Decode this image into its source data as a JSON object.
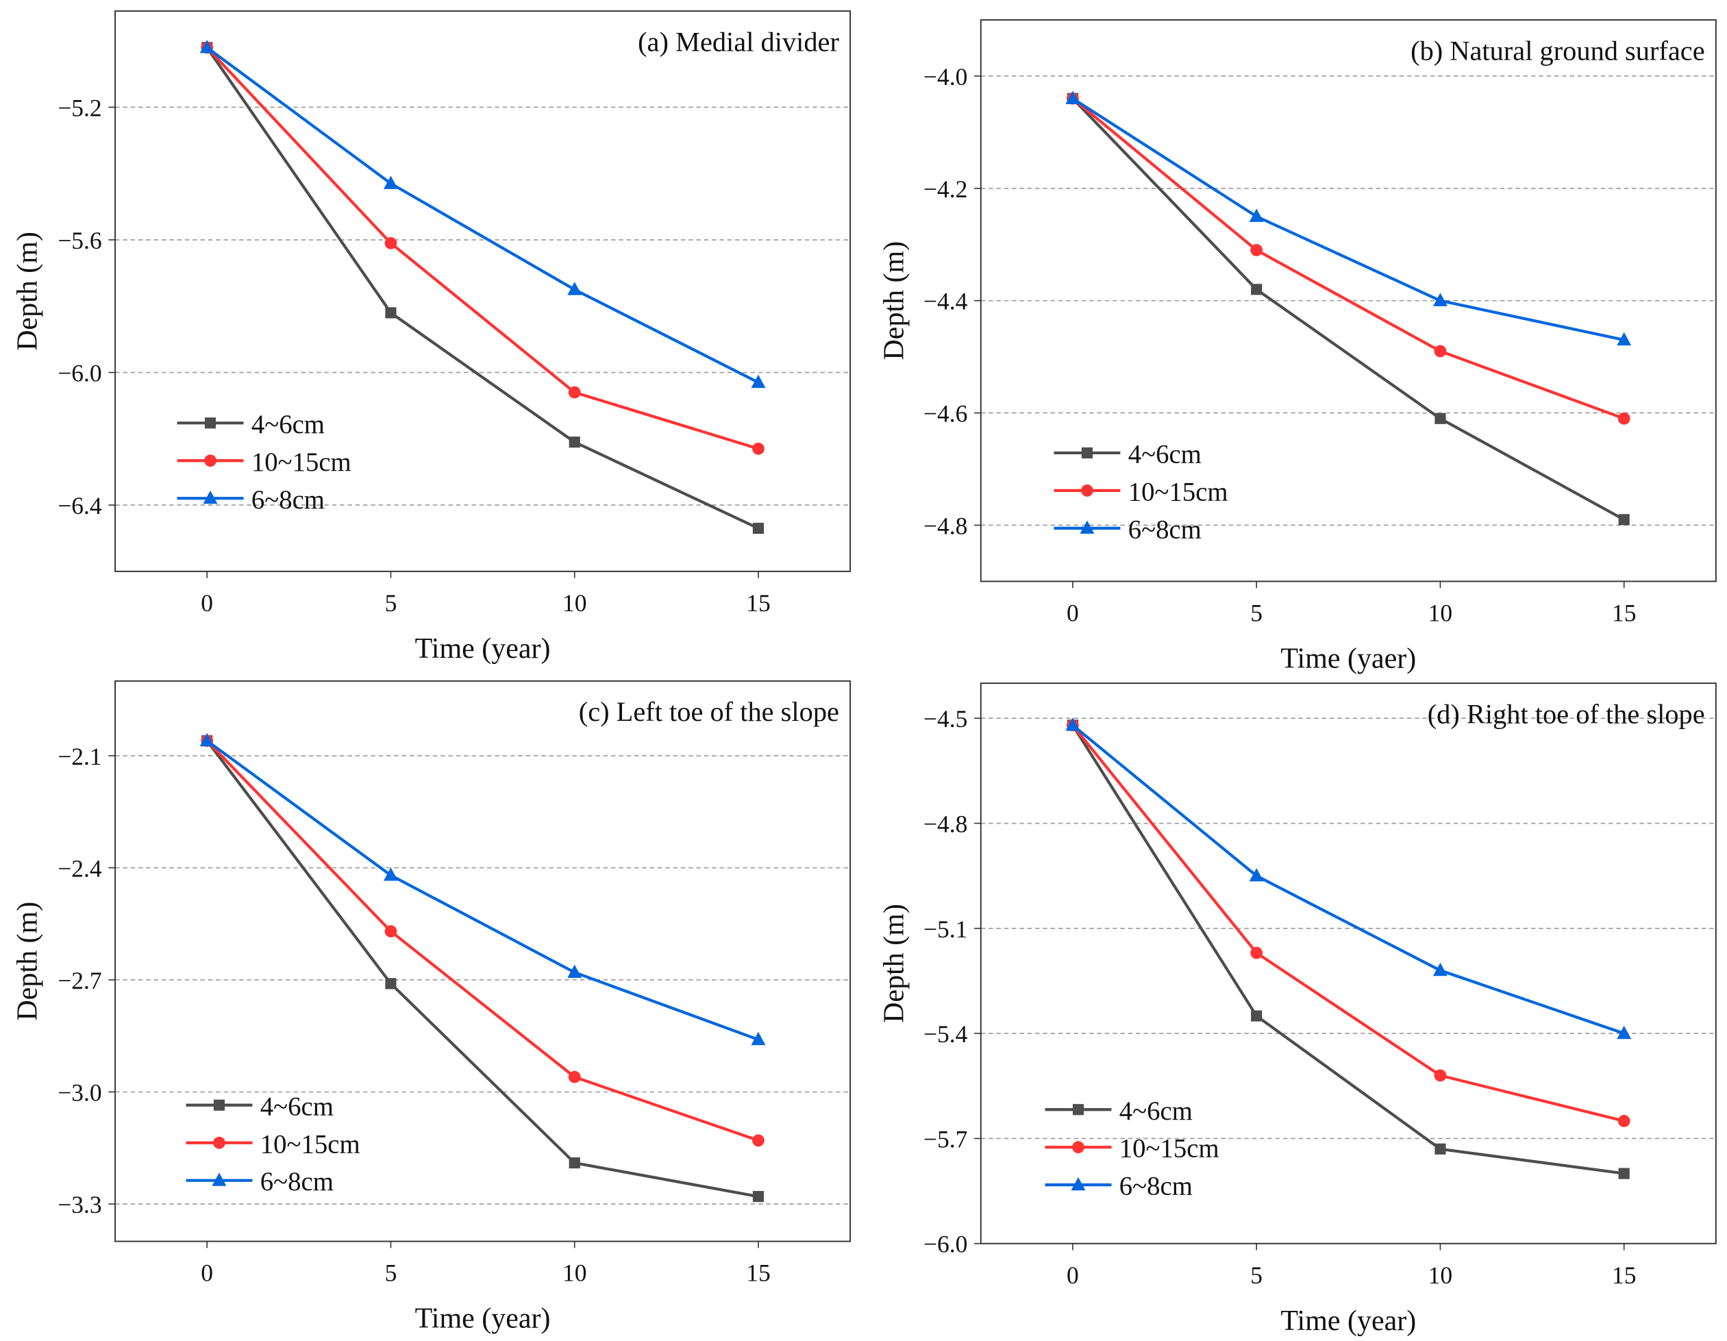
{
  "colors": {
    "4~6cm": "#4d4d4d",
    "10~15cm": "#ff3333",
    "6~8cm": "#0066dd",
    "grid": "#999999"
  },
  "chart_data": [
    {
      "type": "line",
      "title": "(a) Medial divider",
      "xlabel": "Time (year)",
      "ylabel": "Depth (m)",
      "x": [
        0,
        5,
        10,
        15
      ],
      "xticks": [
        0,
        5,
        10,
        15
      ],
      "yticks": [
        -5.2,
        -5.6,
        -6.0,
        -6.4
      ],
      "ytick_labels": [
        "−5.2",
        "−5.6",
        "−6.0",
        "−6.4"
      ],
      "xlim": [
        -2.5,
        17.5
      ],
      "ylim": [
        -6.6,
        -4.91
      ],
      "grid": "horizontal dashed",
      "legend_placement": "lower-left",
      "series": [
        {
          "name": "4~6cm",
          "marker": "square",
          "values": [
            -5.02,
            -5.82,
            -6.21,
            -6.47
          ]
        },
        {
          "name": "10~15cm",
          "marker": "circle",
          "values": [
            -5.02,
            -5.61,
            -6.06,
            -6.23
          ]
        },
        {
          "name": "6~8cm",
          "marker": "triangle",
          "values": [
            -5.02,
            -5.43,
            -5.75,
            -6.03
          ]
        }
      ]
    },
    {
      "type": "line",
      "title": "(b) Natural ground surface",
      "xlabel": "Time (yaer)",
      "ylabel": "Depth (m)",
      "x": [
        0,
        5,
        10,
        15
      ],
      "xticks": [
        0,
        5,
        10,
        15
      ],
      "yticks": [
        -4.0,
        -4.2,
        -4.4,
        -4.6,
        -4.8
      ],
      "ytick_labels": [
        "−4.0",
        "−4.2",
        "−4.4",
        "−4.6",
        "−4.8"
      ],
      "xlim": [
        -2.5,
        17.5
      ],
      "ylim": [
        -4.9,
        -3.9
      ],
      "grid": "horizontal dashed",
      "legend_placement": "lower-left",
      "series": [
        {
          "name": "4~6cm",
          "marker": "square",
          "values": [
            -4.04,
            -4.38,
            -4.61,
            -4.79
          ]
        },
        {
          "name": "10~15cm",
          "marker": "circle",
          "values": [
            -4.04,
            -4.31,
            -4.49,
            -4.61
          ]
        },
        {
          "name": "6~8cm",
          "marker": "triangle",
          "values": [
            -4.04,
            -4.25,
            -4.4,
            -4.47
          ]
        }
      ]
    },
    {
      "type": "line",
      "title": "(c) Left toe of the slope",
      "xlabel": "Time (year)",
      "ylabel": "Depth (m)",
      "x": [
        0,
        5,
        10,
        15
      ],
      "xticks": [
        0,
        5,
        10,
        15
      ],
      "yticks": [
        -2.1,
        -2.4,
        -2.7,
        -3.0,
        -3.3
      ],
      "ytick_labels": [
        "−2.1",
        "−2.4",
        "−2.7",
        "−3.0",
        "−3.3"
      ],
      "xlim": [
        -2.5,
        17.5
      ],
      "ylim": [
        -3.4,
        -1.9
      ],
      "grid": "horizontal dashed",
      "legend_placement": "lower-left",
      "series": [
        {
          "name": "4~6cm",
          "marker": "square",
          "values": [
            -2.06,
            -2.71,
            -3.19,
            -3.28
          ]
        },
        {
          "name": "10~15cm",
          "marker": "circle",
          "values": [
            -2.06,
            -2.57,
            -2.96,
            -3.13
          ]
        },
        {
          "name": "6~8cm",
          "marker": "triangle",
          "values": [
            -2.06,
            -2.42,
            -2.68,
            -2.86
          ]
        }
      ]
    },
    {
      "type": "line",
      "title": "(d) Right toe of the slope",
      "xlabel": "Time (year)",
      "ylabel": "Depth (m)",
      "x": [
        0,
        5,
        10,
        15
      ],
      "xticks": [
        0,
        5,
        10,
        15
      ],
      "yticks": [
        -4.5,
        -4.8,
        -5.1,
        -5.4,
        -5.7,
        -6.0
      ],
      "ytick_labels": [
        "−4.5",
        "−4.8",
        "−5.1",
        "−5.4",
        "−5.7",
        "−6.0"
      ],
      "xlim": [
        -2.5,
        17.5
      ],
      "ylim": [
        -6.0,
        -4.4
      ],
      "grid": "horizontal dashed",
      "legend_placement": "lower-left",
      "series": [
        {
          "name": "4~6cm",
          "marker": "square",
          "values": [
            -4.52,
            -5.35,
            -5.73,
            -5.8
          ]
        },
        {
          "name": "10~15cm",
          "marker": "circle",
          "values": [
            -4.52,
            -5.17,
            -5.52,
            -5.65
          ]
        },
        {
          "name": "6~8cm",
          "marker": "triangle",
          "values": [
            -4.52,
            -4.95,
            -5.22,
            -5.4
          ]
        }
      ]
    }
  ]
}
